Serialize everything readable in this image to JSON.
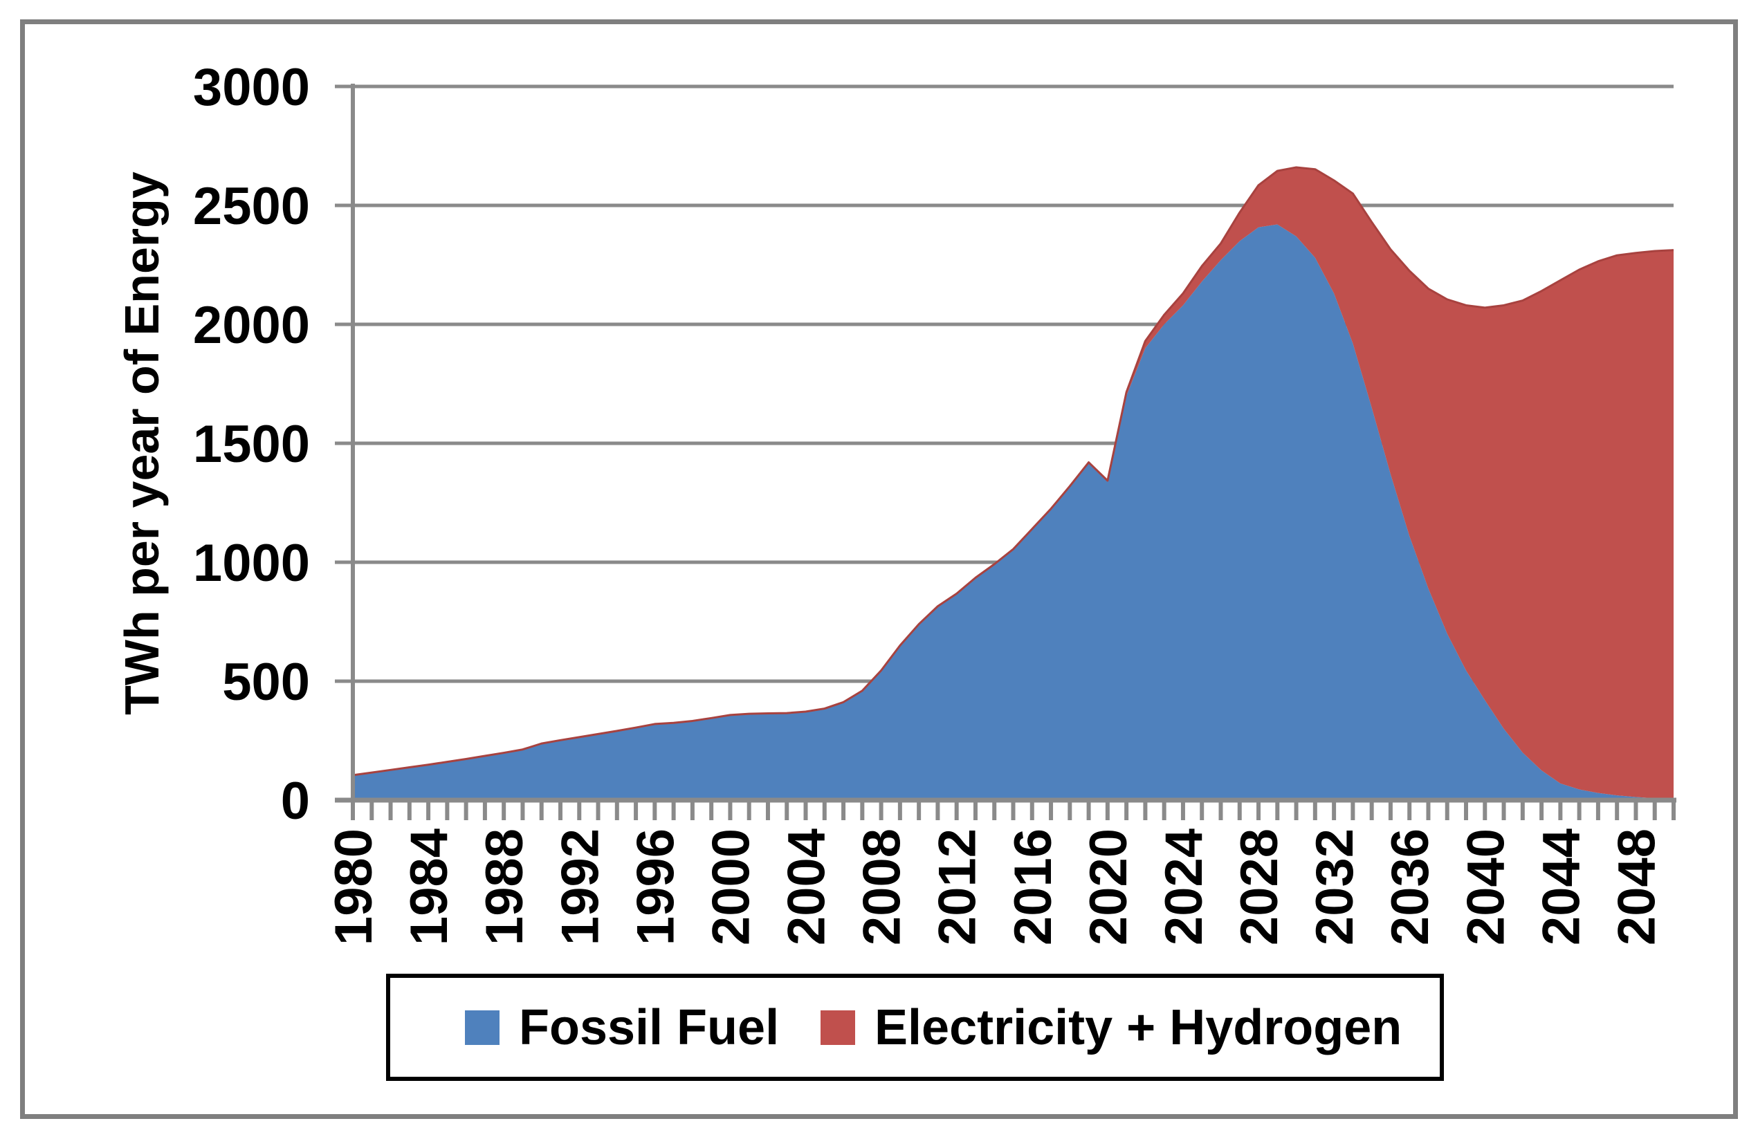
{
  "figure": {
    "y_axis_title": "TWh per year of Energy",
    "background_color": "#FFFFFF",
    "frame_border_color": "#7F7F7F",
    "gridline_color": "#8A8A8A",
    "axis_color": "#8A8A8A"
  },
  "legend": {
    "position": "bottom",
    "items": [
      {
        "label": "Fossil Fuel",
        "color": "#4F81BD"
      },
      {
        "label": "Electricity + Hydrogen",
        "color": "#C0504D"
      }
    ]
  },
  "chart_data": {
    "type": "area",
    "stacked": true,
    "title": "",
    "xlabel": "",
    "ylabel": "TWh per year of Energy",
    "x_start": 1980,
    "x_end": 2050,
    "x_tick_labels": [
      1980,
      1984,
      1988,
      1992,
      1996,
      2000,
      2004,
      2008,
      2012,
      2016,
      2020,
      2024,
      2028,
      2032,
      2036,
      2040,
      2044,
      2048
    ],
    "y_ticks": [
      0,
      500,
      1000,
      1500,
      2000,
      2500,
      3000
    ],
    "ylim": [
      0,
      3000
    ],
    "grid": true,
    "legend_position": "bottom",
    "series": [
      {
        "name": "Fossil Fuel",
        "color": "#4F81BD",
        "values": [
          105,
          116,
          127,
          138,
          149,
          161,
          173,
          186,
          199,
          213,
          238,
          252,
          265,
          278,
          291,
          305,
          320,
          325,
          333,
          345,
          358,
          363,
          365,
          366,
          372,
          385,
          412,
          460,
          545,
          650,
          740,
          815,
          868,
          935,
          992,
          1055,
          1140,
          1225,
          1320,
          1420,
          1338,
          1700,
          1900,
          2000,
          2080,
          2180,
          2270,
          2350,
          2408,
          2420,
          2370,
          2280,
          2130,
          1920,
          1650,
          1370,
          1110,
          890,
          700,
          545,
          420,
          300,
          200,
          125,
          70,
          45,
          30,
          20,
          13,
          8,
          5
        ]
      },
      {
        "name": "Electricity + Hydrogen",
        "color": "#C0504D",
        "edge_color": "#A8423F",
        "values": [
          0,
          0,
          0,
          0,
          0,
          0,
          0,
          0,
          0,
          0,
          0,
          0,
          0,
          0,
          0,
          0,
          0,
          0,
          0,
          0,
          0,
          0,
          0,
          0,
          0,
          0,
          0,
          0,
          0,
          0,
          0,
          0,
          0,
          0,
          0,
          0,
          0,
          0,
          0,
          0,
          5,
          15,
          30,
          40,
          50,
          65,
          70,
          120,
          177,
          225,
          290,
          372,
          475,
          630,
          780,
          945,
          1115,
          1260,
          1405,
          1535,
          1650,
          1780,
          1900,
          2015,
          2115,
          2185,
          2235,
          2270,
          2287,
          2300,
          2307
        ]
      }
    ]
  }
}
